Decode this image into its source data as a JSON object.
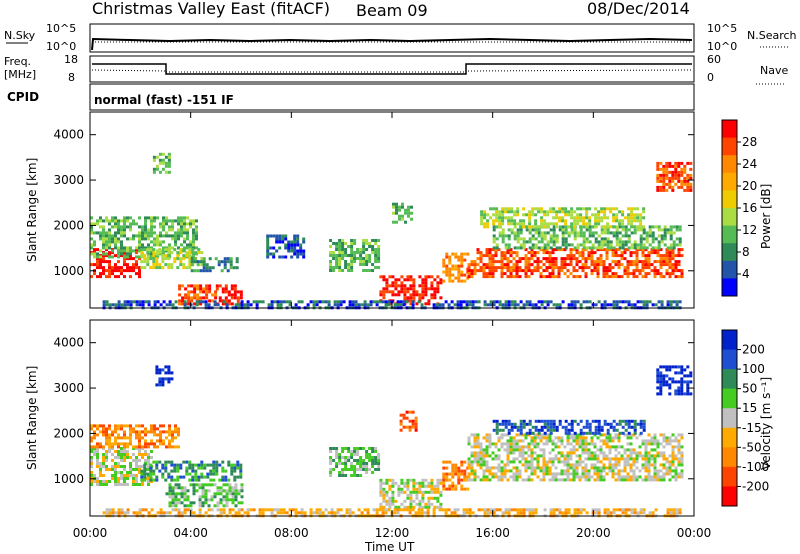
{
  "header": {
    "station": "Christmas Valley East (fitACF)",
    "beam": "Beam 09",
    "date": "08/Dec/2014"
  },
  "panels": {
    "nsky_label": "N.Sky",
    "nsearch_label": "N.Search",
    "freq_label_line1": "Freq.",
    "freq_label_line2": "[MHz]",
    "nave_label": "Nave",
    "cpid_label": "CPID",
    "cpid_text": "normal (fast) -151 IF",
    "noise_left_ticks": [
      "10^5",
      "10^0"
    ],
    "noise_right_ticks": [
      "10^5",
      "10^0"
    ],
    "freq_left_ticks": [
      "18",
      "8"
    ],
    "freq_right_ticks": [
      "60",
      "0"
    ]
  },
  "colorbars": {
    "power": {
      "label": "Power [dB]",
      "ticks": [
        "28",
        "24",
        "20",
        "16",
        "12",
        "8",
        "4"
      ],
      "colors": [
        "#ff0000",
        "#ff4400",
        "#ff8800",
        "#ffaa00",
        "#eecc00",
        "#aadd44",
        "#55bb55",
        "#2e8b57",
        "#2255aa",
        "#0000ff"
      ]
    },
    "velocity": {
      "label": "Velocity [m s⁻¹]",
      "ticks": [
        "200",
        "100",
        "50",
        "15",
        "-15",
        "-50",
        "-100",
        "-200"
      ],
      "colors": [
        "#0022cc",
        "#1f4fd1",
        "#2e8b57",
        "#44cc22",
        "#c0c0c0",
        "#ffaa00",
        "#ff8800",
        "#ff4400",
        "#ff0000"
      ]
    }
  },
  "chart_data": [
    {
      "type": "heatmap",
      "title": "Christmas Valley East (fitACF) Beam 09 08/Dec/2014",
      "xlabel": "Time UT",
      "ylabel": "Slant Range [km]",
      "x_ticks": [
        "00:00",
        "04:00",
        "08:00",
        "12:00",
        "16:00",
        "20:00",
        "00:00"
      ],
      "y_ticks": [
        "1000",
        "2000",
        "3000",
        "4000"
      ],
      "xlim": [
        0,
        24
      ],
      "ylim": [
        180,
        4500
      ],
      "colorbar": "power",
      "regions": [
        {
          "t0": 0.0,
          "t1": 2.0,
          "r0": 900,
          "r1": 1500,
          "level": 0
        },
        {
          "t0": 0.0,
          "t1": 4.2,
          "r0": 1300,
          "r1": 2200,
          "level": 6
        },
        {
          "t0": 2.0,
          "t1": 4.5,
          "r0": 1100,
          "r1": 1500,
          "level": 5
        },
        {
          "t0": 4.0,
          "t1": 6.0,
          "r0": 1000,
          "r1": 1300,
          "level": 7
        },
        {
          "t0": 3.5,
          "t1": 5.0,
          "r0": 300,
          "r1": 700,
          "level": 1
        },
        {
          "t0": 5.0,
          "t1": 6.0,
          "r0": 300,
          "r1": 700,
          "level": 0
        },
        {
          "t0": 2.5,
          "t1": 3.2,
          "r0": 3200,
          "r1": 3600,
          "level": 6
        },
        {
          "t0": 7.0,
          "t1": 8.5,
          "r0": 1300,
          "r1": 1800,
          "level": 8
        },
        {
          "t0": 9.5,
          "t1": 11.5,
          "r0": 1000,
          "r1": 1700,
          "level": 6
        },
        {
          "t0": 11.5,
          "t1": 14.0,
          "r0": 300,
          "r1": 900,
          "level": 0
        },
        {
          "t0": 14.0,
          "t1": 15.0,
          "r0": 800,
          "r1": 1400,
          "level": 2
        },
        {
          "t0": 15.0,
          "t1": 23.5,
          "r0": 900,
          "r1": 1500,
          "level": 1
        },
        {
          "t0": 16.0,
          "t1": 23.5,
          "r0": 1500,
          "r1": 2000,
          "level": 6
        },
        {
          "t0": 15.5,
          "t1": 22.0,
          "r0": 2000,
          "r1": 2400,
          "level": 5
        },
        {
          "t0": 12.0,
          "t1": 12.8,
          "r0": 2100,
          "r1": 2500,
          "level": 6
        },
        {
          "t0": 22.5,
          "t1": 23.9,
          "r0": 2800,
          "r1": 3400,
          "level": 1
        },
        {
          "t0": 0.5,
          "t1": 23.5,
          "r0": 180,
          "r1": 350,
          "level": 8
        }
      ]
    },
    {
      "type": "heatmap",
      "xlabel": "Time UT",
      "ylabel": "Slant Range [km]",
      "x_ticks": [
        "00:00",
        "04:00",
        "08:00",
        "12:00",
        "16:00",
        "20:00",
        "00:00"
      ],
      "y_ticks": [
        "1000",
        "2000",
        "3000",
        "4000"
      ],
      "xlim": [
        0,
        24
      ],
      "ylim": [
        180,
        4500
      ],
      "colorbar": "velocity",
      "regions": [
        {
          "t0": 0.0,
          "t1": 2.5,
          "r0": 900,
          "r1": 1700,
          "level": 4
        },
        {
          "t0": 0.0,
          "t1": 3.5,
          "r0": 1700,
          "r1": 2200,
          "level": 6
        },
        {
          "t0": 2.0,
          "t1": 6.0,
          "r0": 1000,
          "r1": 1400,
          "level": 2
        },
        {
          "t0": 3.0,
          "t1": 6.0,
          "r0": 400,
          "r1": 900,
          "level": 3
        },
        {
          "t0": 2.6,
          "t1": 3.2,
          "r0": 3100,
          "r1": 3500,
          "level": 0
        },
        {
          "t0": 9.5,
          "t1": 11.5,
          "r0": 1100,
          "r1": 1700,
          "level": 3
        },
        {
          "t0": 11.5,
          "t1": 14.0,
          "r0": 400,
          "r1": 1000,
          "level": 4
        },
        {
          "t0": 14.0,
          "t1": 15.0,
          "r0": 800,
          "r1": 1400,
          "level": 6
        },
        {
          "t0": 12.3,
          "t1": 13.0,
          "r0": 2100,
          "r1": 2500,
          "level": 7
        },
        {
          "t0": 15.0,
          "t1": 23.5,
          "r0": 1000,
          "r1": 2000,
          "level": 4
        },
        {
          "t0": 16.0,
          "t1": 22.0,
          "r0": 2000,
          "r1": 2300,
          "level": 1
        },
        {
          "t0": 22.5,
          "t1": 23.9,
          "r0": 2900,
          "r1": 3500,
          "level": 0
        },
        {
          "t0": 0.5,
          "t1": 23.5,
          "r0": 180,
          "r1": 350,
          "level": 5
        }
      ]
    }
  ]
}
